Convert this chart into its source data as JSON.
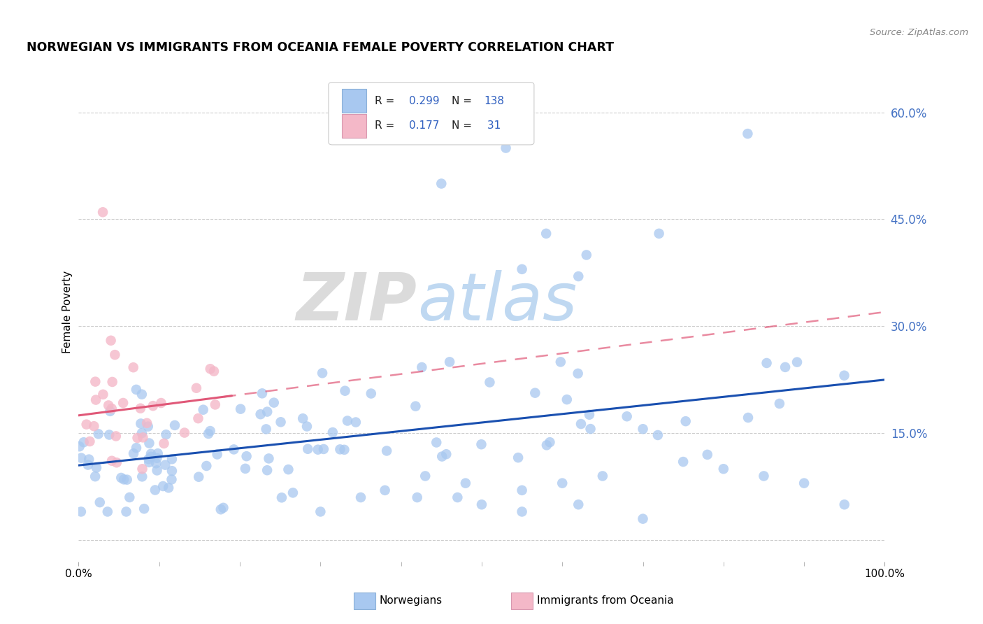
{
  "title": "NORWEGIAN VS IMMIGRANTS FROM OCEANIA FEMALE POVERTY CORRELATION CHART",
  "source": "Source: ZipAtlas.com",
  "ylabel": "Female Poverty",
  "y_ticks": [
    0.0,
    0.15,
    0.3,
    0.45,
    0.6
  ],
  "y_tick_labels": [
    "",
    "15.0%",
    "30.0%",
    "45.0%",
    "60.0%"
  ],
  "color_norwegian": "#a8c8f0",
  "color_oceania": "#f4b8c8",
  "color_norwegian_line": "#1a50b0",
  "color_oceania_line": "#e05878",
  "watermark_zip": "ZIP",
  "watermark_atlas": "atlas",
  "background_color": "#ffffff",
  "grid_color": "#cccccc",
  "xlim": [
    0.0,
    1.0
  ],
  "ylim": [
    -0.03,
    0.67
  ],
  "nor_intercept": 0.105,
  "nor_slope": 0.12,
  "oce_intercept": 0.175,
  "oce_slope": 0.145
}
